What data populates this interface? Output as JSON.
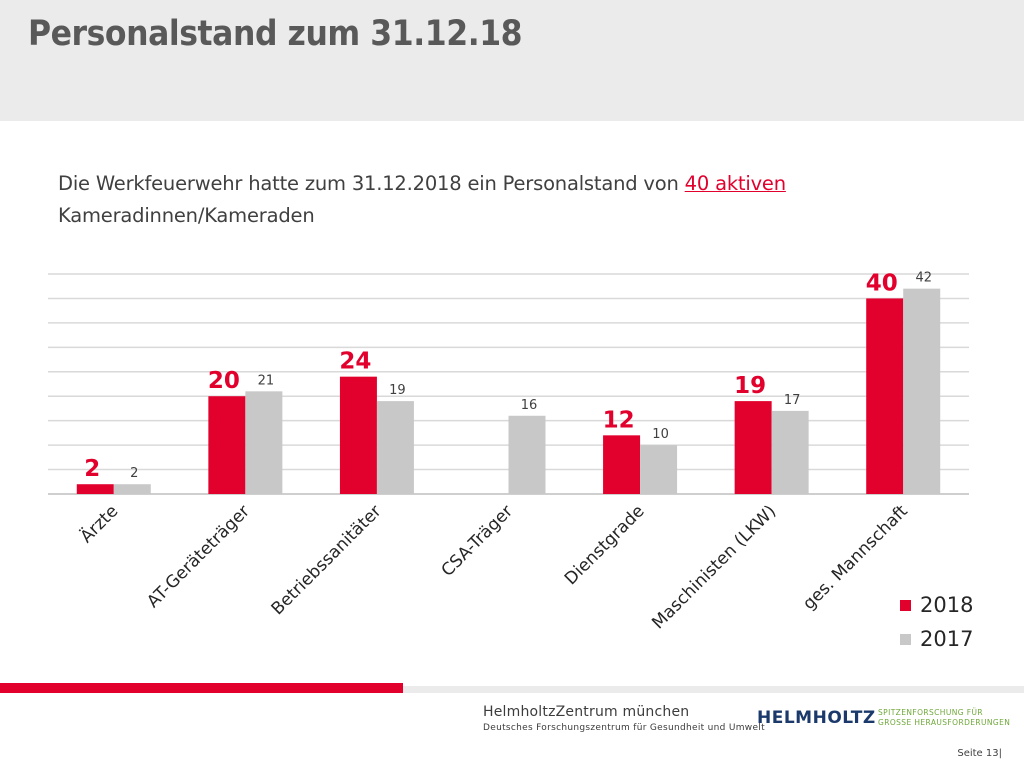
{
  "page": {
    "title": "Personalstand zum 31.12.18",
    "intro_prefix": "Die Werkfeuerwehr hatte zum 31.12.2018 ein Personalstand von ",
    "intro_highlight": "40 aktiven",
    "intro_line2": "Kameradinnen/Kameraden"
  },
  "chart_data": {
    "type": "bar",
    "categories": [
      "Ärzte",
      "AT-Geräteträger",
      "Betriebssanitäter",
      "CSA-Träger",
      "Dienstgrade",
      "Maschinisten (LKW)",
      "ges. Mannschaft"
    ],
    "series": [
      {
        "name": "2018",
        "color": "#e2002d",
        "values": [
          2,
          20,
          24,
          null,
          12,
          19,
          40
        ]
      },
      {
        "name": "2017",
        "color": "#c8c8c8",
        "values": [
          2,
          21,
          19,
          16,
          10,
          17,
          42
        ]
      }
    ],
    "ylim": [
      0,
      45
    ],
    "grid": true,
    "legend": "bottom-right"
  },
  "footer": {
    "logo_hmgu_line1": "HelmholtzZentrum münchen",
    "logo_hmgu_line2": "Deutsches Forschungszentrum für Gesundheit und Umwelt",
    "logo_helmholtz": "HELMHOLTZ",
    "logo_helmholtz_sub1": "SPITZENFORSCHUNG FÜR",
    "logo_helmholtz_sub2": "GROSSE HERAUSFORDERUNGEN",
    "page_label": "Seite 13"
  }
}
